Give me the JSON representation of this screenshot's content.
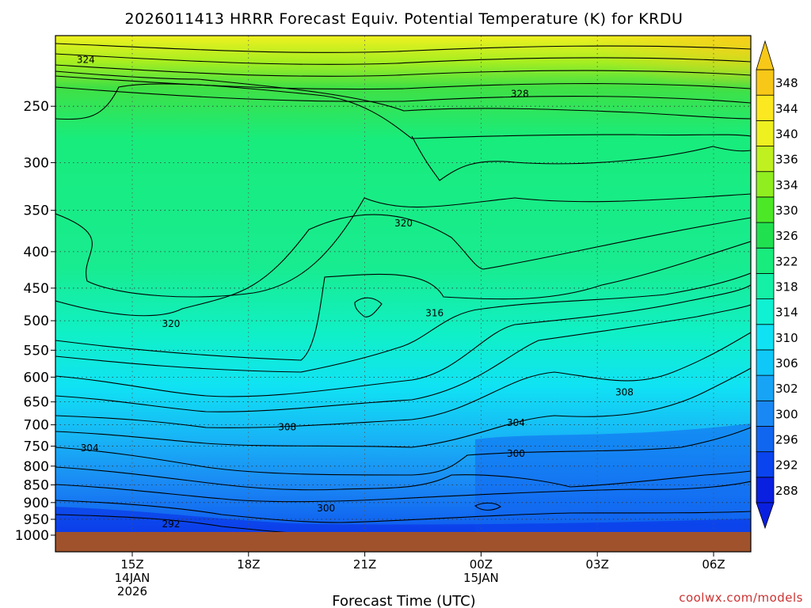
{
  "chart_data": {
    "type": "heatmap",
    "title": "2026011413 HRRR Forecast Equiv. Potential Temperature (K) for KRDU",
    "xlabel": "Forecast Time (UTC)",
    "ylabel": "",
    "x_ticks": [
      {
        "hour": 15,
        "label": "15Z",
        "sub": [
          "14JAN",
          "2026"
        ]
      },
      {
        "hour": 18,
        "label": "18Z",
        "sub": []
      },
      {
        "hour": 21,
        "label": "21Z",
        "sub": []
      },
      {
        "hour": 24,
        "label": "00Z",
        "sub": [
          "15JAN"
        ]
      },
      {
        "hour": 27,
        "label": "03Z",
        "sub": []
      },
      {
        "hour": 30,
        "label": "06Z",
        "sub": []
      }
    ],
    "xlim": [
      13,
      31
    ],
    "y_ticks": [
      250,
      300,
      350,
      400,
      450,
      500,
      550,
      600,
      650,
      700,
      750,
      800,
      850,
      900,
      950,
      1000
    ],
    "ylim": [
      1000,
      200
    ],
    "y_scale": "log",
    "grid": true,
    "colorbar": {
      "levels": [
        288,
        292,
        296,
        300,
        302,
        306,
        310,
        314,
        318,
        322,
        326,
        330,
        334,
        336,
        340,
        344,
        348
      ],
      "colors": [
        "#0a20e0",
        "#0a44ee",
        "#1166f0",
        "#1a88f4",
        "#18a4f6",
        "#10c8f8",
        "#10e2f4",
        "#10f0d2",
        "#14f0a6",
        "#18ec7c",
        "#20e050",
        "#4ce828",
        "#90ee20",
        "#c0f020",
        "#eef020",
        "#fce820",
        "#f8c818"
      ],
      "extend": "both",
      "orientation": "vertical"
    },
    "contour_labels": [
      {
        "x": 13.8,
        "p": 215,
        "value": "324"
      },
      {
        "x": 25.0,
        "p": 240,
        "value": "328"
      },
      {
        "x": 22.0,
        "p": 365,
        "value": "320"
      },
      {
        "x": 16.0,
        "p": 505,
        "value": "320"
      },
      {
        "x": 22.8,
        "p": 488,
        "value": "316"
      },
      {
        "x": 27.7,
        "p": 630,
        "value": "308"
      },
      {
        "x": 19.0,
        "p": 705,
        "value": "308"
      },
      {
        "x": 13.9,
        "p": 755,
        "value": "304"
      },
      {
        "x": 24.9,
        "p": 695,
        "value": "304"
      },
      {
        "x": 24.9,
        "p": 768,
        "value": "300"
      },
      {
        "x": 20.0,
        "p": 917,
        "value": "300"
      },
      {
        "x": 16.0,
        "p": 965,
        "value": "292"
      }
    ],
    "terrain_color": "#a0522d"
  },
  "credit": "coolwx.com/models"
}
